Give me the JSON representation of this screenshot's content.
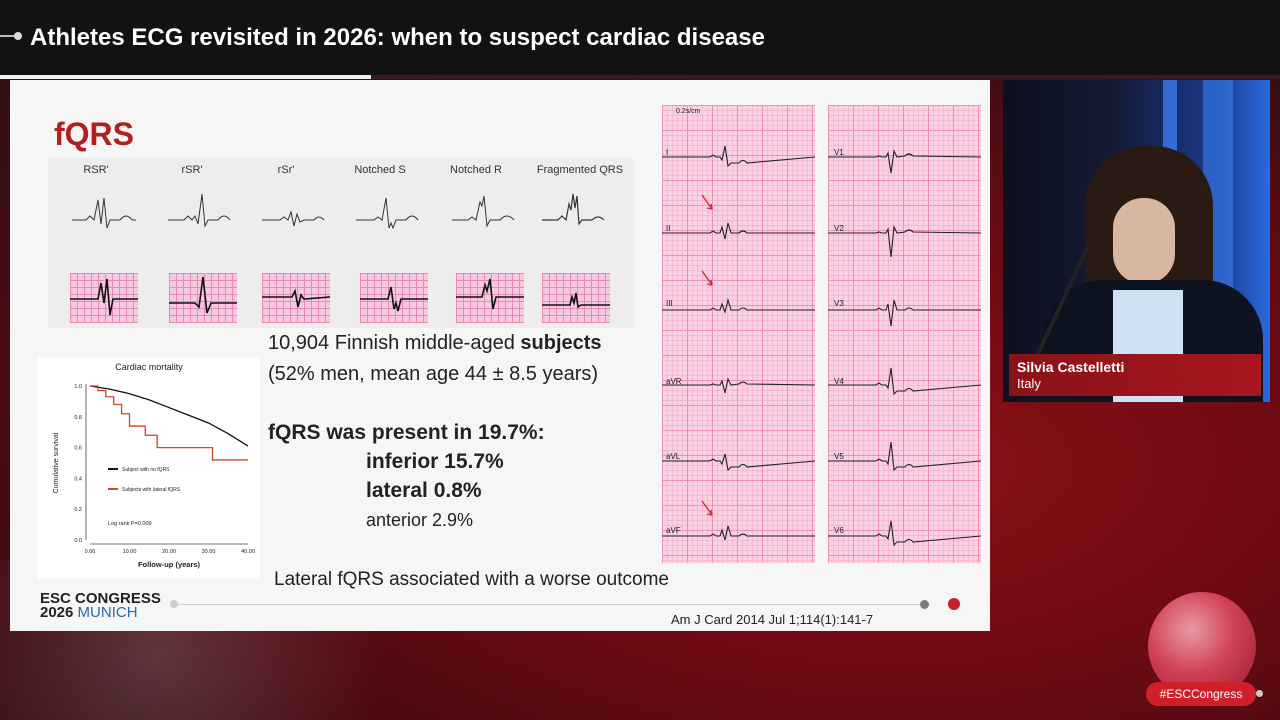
{
  "header": {
    "title": "Athletes ECG revisited in 2026: when to suspect cardiac disease",
    "progress": 0.29
  },
  "slide": {
    "heading": "fQRS",
    "patterns": [
      "RSR'",
      "rSR'",
      "rSr'",
      "Notched S",
      "Notched R",
      "Fragmented QRS"
    ],
    "study_line1_prefix": "10,904 Finnish middle-aged",
    "study_line1_bold": "subjects",
    "study_line2": "(52% men, mean age 44 ± 8.5 years)",
    "present": "fQRS was present in 19.7%:",
    "inferior": "inferior 15.7%",
    "lateral": "lateral 0.8%",
    "anterior": "anterior 2.9%",
    "conclusion": "Lateral fQRS associated with a worse outcome",
    "reference": "Am J Card 2014 Jul 1;114(1):141-7",
    "congress_line1": "ESC CONGRESS",
    "congress_year": "2026",
    "congress_city": "MUNICH"
  },
  "km_chart": {
    "title": "Cardiac mortality",
    "ylabel": "Cumulative survival",
    "xlabel": "Follow-up (years)",
    "yticks": [
      "1.0",
      "0.8",
      "0.6",
      "0.4",
      "0.2",
      "0.0"
    ],
    "xticks": [
      "0.00",
      "10.00",
      "20.00",
      "30.00",
      "40.00"
    ],
    "legend_no": "Subject with no fQRS",
    "legend_lat": "Subjects with lateral fQRS",
    "logrank": "Log rank P=0.009",
    "colors": {
      "no_fqrs": "#111111",
      "lateral": "#d2452a"
    }
  },
  "chart_data": {
    "type": "line",
    "title": "Cardiac mortality",
    "xlabel": "Follow-up (years)",
    "ylabel": "Cumulative survival",
    "xlim": [
      0,
      40
    ],
    "ylim": [
      0,
      1.0
    ],
    "series": [
      {
        "name": "Subject with no fQRS",
        "x": [
          0,
          5,
          10,
          15,
          20,
          25,
          30,
          35,
          40
        ],
        "y": [
          1.0,
          0.98,
          0.95,
          0.91,
          0.86,
          0.81,
          0.76,
          0.69,
          0.61
        ]
      },
      {
        "name": "Subjects with lateral fQRS",
        "x": [
          0,
          2,
          4,
          6,
          8,
          10,
          14,
          17,
          20,
          25,
          30,
          31,
          35,
          40
        ],
        "y": [
          1.0,
          0.97,
          0.93,
          0.88,
          0.82,
          0.74,
          0.68,
          0.6,
          0.6,
          0.6,
          0.6,
          0.52,
          0.52,
          0.52
        ]
      }
    ],
    "annotations": [
      "Log rank P=0.009"
    ]
  },
  "ecg": {
    "scale": "0.2s/cm",
    "left_leads": [
      "I",
      "II",
      "III",
      "aVR",
      "aVL",
      "aVF"
    ],
    "right_leads": [
      "V1",
      "V2",
      "V3",
      "V4",
      "V5",
      "V6"
    ]
  },
  "speaker": {
    "name": "Silvia Castelletti",
    "country": "Italy"
  },
  "footer": {
    "hashtag": "#ESCCongress"
  }
}
